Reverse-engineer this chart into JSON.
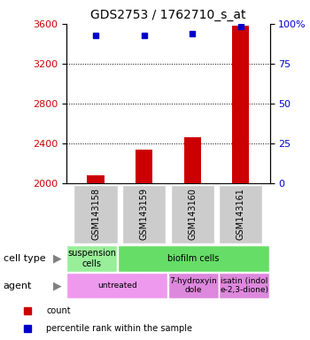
{
  "title": "GDS2753 / 1762710_s_at",
  "samples": [
    "GSM143158",
    "GSM143159",
    "GSM143160",
    "GSM143161"
  ],
  "counts": [
    2080,
    2340,
    2460,
    3580
  ],
  "percentile_ranks": [
    93,
    93,
    94,
    98
  ],
  "ylim_left": [
    2000,
    3600
  ],
  "ylim_right": [
    0,
    100
  ],
  "yticks_left": [
    2000,
    2400,
    2800,
    3200,
    3600
  ],
  "yticks_right": [
    0,
    25,
    50,
    75,
    100
  ],
  "ytick_labels_right": [
    "0",
    "25",
    "50",
    "75",
    "100%"
  ],
  "bar_color": "#cc0000",
  "dot_color": "#0000cc",
  "cell_type_row": [
    {
      "label": "suspension\ncells",
      "color": "#99ee99",
      "span": 1
    },
    {
      "label": "biofilm cells",
      "color": "#66dd66",
      "span": 3
    }
  ],
  "agent_row": [
    {
      "label": "untreated",
      "color": "#ee99ee",
      "span": 2
    },
    {
      "label": "7-hydroxyin\ndole",
      "color": "#dd88dd",
      "span": 1
    },
    {
      "label": "isatin (indol\ne-2,3-dione)",
      "color": "#dd88dd",
      "span": 1
    }
  ],
  "cell_type_label": "cell type",
  "agent_label": "agent",
  "legend_count_label": "count",
  "legend_percentile_label": "percentile rank within the sample",
  "sample_box_color": "#cccccc",
  "left_label_color": "#cc0000",
  "right_label_color": "#0000cc"
}
